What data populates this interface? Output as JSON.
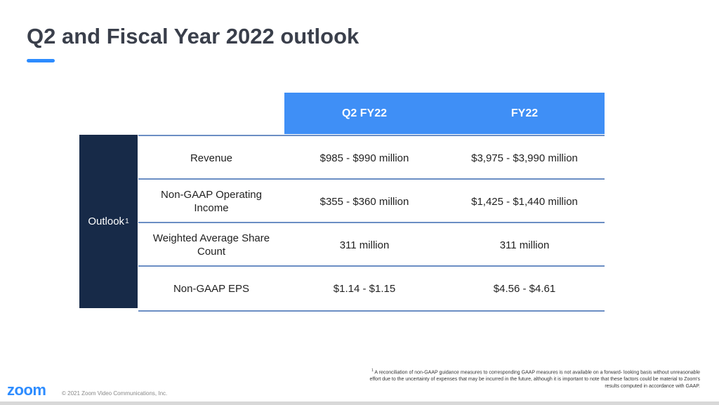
{
  "title": "Q2 and Fiscal Year 2022 outlook",
  "accent_color": "#2d8cff",
  "header_color": "#3f8ff6",
  "side_label_color": "#172a48",
  "table": {
    "columns": [
      "Q2 FY22",
      "FY22"
    ],
    "side_label": "Outlook",
    "side_label_footnote_mark": "1",
    "rows": [
      {
        "label": "Revenue",
        "q2": "$985 - $990 million",
        "fy": "$3,975 - $3,990 million"
      },
      {
        "label": "Non-GAAP Operating Income",
        "q2": "$355 - $360 million",
        "fy": "$1,425 - $1,440 million"
      },
      {
        "label": "Weighted Average Share Count",
        "q2": "311 million",
        "fy": "311 million"
      },
      {
        "label": "Non-GAAP EPS",
        "q2": "$1.14 - $1.15",
        "fy": "$4.56 - $4.61"
      }
    ]
  },
  "footnote": {
    "mark": "1",
    "text": "A reconciliation of non-GAAP guidance measures to corresponding GAAP measures is not available on a forward- looking basis without unreasonable effort due to the uncertainty of expenses that may be incurred in the future, although it is important to note that these factors could be material to Zoom's results computed in accordance with GAAP."
  },
  "logo_text": "zoom",
  "copyright": "© 2021 Zoom Video Communications, Inc."
}
